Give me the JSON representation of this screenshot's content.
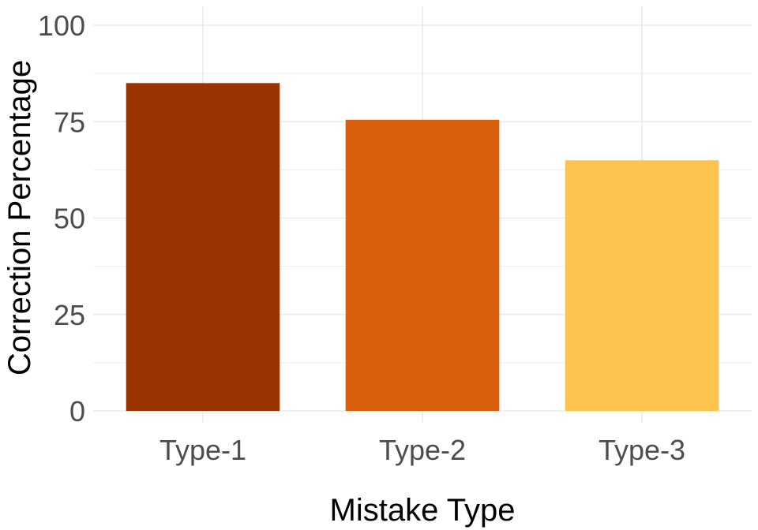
{
  "chart_data": {
    "type": "bar",
    "title": "",
    "xlabel": "Mistake Type",
    "ylabel": "Correction Percentage",
    "categories": [
      "Type-1",
      "Type-2",
      "Type-3"
    ],
    "values": [
      85,
      75.5,
      65
    ],
    "colors": [
      "#993300",
      "#d95f0e",
      "#fec44f"
    ],
    "ylim": [
      0,
      100
    ],
    "y_ticks": [
      0,
      25,
      50,
      75,
      100
    ],
    "grid": true,
    "legend": "none",
    "grid_color": "#ebebeb",
    "minor_grid_color": "#f2f2f2"
  }
}
